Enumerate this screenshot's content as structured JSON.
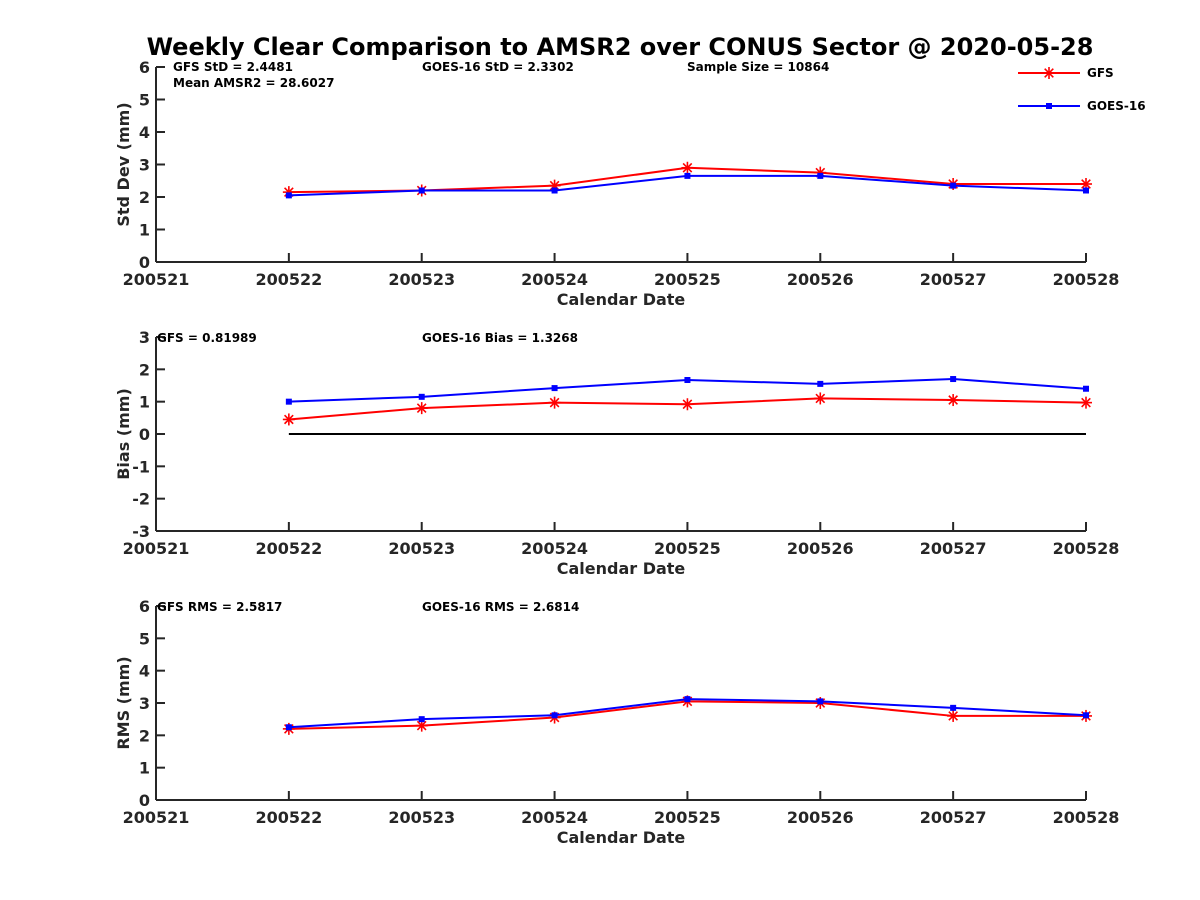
{
  "title": "Weekly Clear Comparison to AMSR2 over CONUS Sector @ 2020-05-28",
  "legend": [
    {
      "name": "GFS",
      "color": "#ff0000",
      "marker": "asterisk"
    },
    {
      "name": "GOES-16",
      "color": "#0000ff",
      "marker": "square"
    }
  ],
  "chart_data": [
    {
      "type": "line",
      "xlabel": "Calendar Date",
      "ylabel": "Std Dev (mm)",
      "x_ticks": [
        "200521",
        "200522",
        "200523",
        "200524",
        "200525",
        "200526",
        "200527",
        "200528"
      ],
      "y_ticks": [
        "0",
        "1",
        "2",
        "3",
        "4",
        "5",
        "6"
      ],
      "ylim": [
        0,
        6
      ],
      "annotations": [
        "GFS StD = 2.4481",
        "GOES-16 StD = 2.3302",
        "Sample Size = 10864",
        "Mean AMSR2 = 28.6027"
      ],
      "x": [
        "200522",
        "200523",
        "200524",
        "200525",
        "200526",
        "200527",
        "200528"
      ],
      "series": [
        {
          "name": "GFS",
          "values": [
            2.15,
            2.2,
            2.35,
            2.9,
            2.75,
            2.4,
            2.4
          ]
        },
        {
          "name": "GOES-16",
          "values": [
            2.05,
            2.2,
            2.2,
            2.65,
            2.65,
            2.35,
            2.2
          ]
        }
      ],
      "zero_line": false,
      "legend_position": "top-right"
    },
    {
      "type": "line",
      "xlabel": "Calendar Date",
      "ylabel": "Bias (mm)",
      "x_ticks": [
        "200521",
        "200522",
        "200523",
        "200524",
        "200525",
        "200526",
        "200527",
        "200528"
      ],
      "y_ticks": [
        "-3",
        "-2",
        "-1",
        "0",
        "1",
        "2",
        "3"
      ],
      "ylim": [
        -3,
        3
      ],
      "annotations": [
        "GFS = 0.81989",
        "GOES-16 Bias  = 1.3268"
      ],
      "x": [
        "200522",
        "200523",
        "200524",
        "200525",
        "200526",
        "200527",
        "200528"
      ],
      "series": [
        {
          "name": "GFS",
          "values": [
            0.45,
            0.8,
            0.97,
            0.92,
            1.1,
            1.05,
            0.97
          ]
        },
        {
          "name": "GOES-16",
          "values": [
            1.0,
            1.15,
            1.42,
            1.67,
            1.55,
            1.7,
            1.4
          ]
        }
      ],
      "zero_line": true
    },
    {
      "type": "line",
      "xlabel": "Calendar Date",
      "ylabel": "RMS (mm)",
      "x_ticks": [
        "200521",
        "200522",
        "200523",
        "200524",
        "200525",
        "200526",
        "200527",
        "200528"
      ],
      "y_ticks": [
        "0",
        "1",
        "2",
        "3",
        "4",
        "5",
        "6"
      ],
      "ylim": [
        0,
        6
      ],
      "annotations": [
        "GFS RMS = 2.5817",
        "GOES-16 RMS = 2.6814"
      ],
      "x": [
        "200522",
        "200523",
        "200524",
        "200525",
        "200526",
        "200527",
        "200528"
      ],
      "series": [
        {
          "name": "GFS",
          "values": [
            2.2,
            2.3,
            2.55,
            3.05,
            3.0,
            2.6,
            2.6
          ]
        },
        {
          "name": "GOES-16",
          "values": [
            2.25,
            2.5,
            2.62,
            3.12,
            3.05,
            2.85,
            2.62
          ]
        }
      ],
      "zero_line": false
    }
  ]
}
